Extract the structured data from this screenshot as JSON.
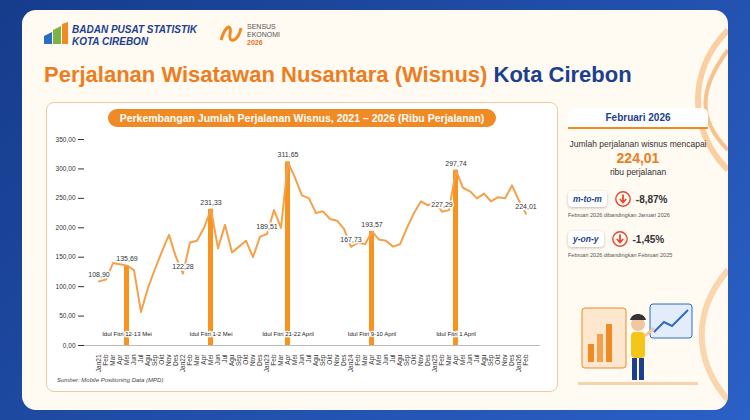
{
  "header": {
    "org": "BADAN PUSAT STATISTIK",
    "org_sub": "KOTA CIREBON",
    "census": "SENSUS",
    "census_sub": "EKONOMI",
    "census_year": "2026"
  },
  "page_title": {
    "text": "Perjalanan Wisatawan Nusantara (Wisnus)",
    "place": "Kota Cirebon"
  },
  "chart_data": {
    "type": "line",
    "title": "Perkembangan Jumlah Perjalanan Wisnus, 2021 – 2026 (Ribu Perjalanan)",
    "source": "Sumber: Mobile Positioning Data (MPD)",
    "categories": [
      "Jan21",
      "Feb",
      "Mar",
      "Apr",
      "Mei",
      "Jun",
      "Jul",
      "Agu",
      "Sep",
      "Okt",
      "Nov",
      "Des",
      "Jan22",
      "Feb",
      "Mar",
      "Apr",
      "Mei",
      "Jun",
      "Jul",
      "Agu",
      "Sep",
      "Okt",
      "Nov",
      "Des",
      "Jan23",
      "Feb",
      "Mar",
      "Apr",
      "Mei",
      "Jun",
      "Jul",
      "Agu",
      "Sep",
      "Okt",
      "Nov",
      "Des",
      "Jan24",
      "Feb",
      "Mar",
      "Apr",
      "Mei",
      "Jun",
      "Jul",
      "Agu",
      "Sep",
      "Okt",
      "Nov",
      "Des",
      "Jan25",
      "Feb",
      "Mar",
      "Apr",
      "Mei",
      "Jun",
      "Jul",
      "Agu",
      "Sep",
      "Okt",
      "Nov",
      "Des",
      "Jan26",
      "Feb"
    ],
    "series": [
      {
        "type": "line",
        "color": "#f5a04a",
        "values": [
          108.9,
          112,
          140,
          138,
          135.69,
          128,
          57,
          98,
          130,
          160,
          188,
          150,
          122.28,
          175,
          178,
          200,
          231.33,
          165,
          205,
          158,
          168,
          178,
          150,
          185,
          189.51,
          230,
          200,
          311.65,
          285,
          255,
          250,
          225,
          228,
          215,
          212,
          198,
          167.73,
          175,
          172,
          193.57,
          180,
          178,
          168,
          172,
          200,
          225,
          245,
          238,
          245,
          227.29,
          230,
          297.74,
          268,
          262,
          250,
          258,
          245,
          252,
          250,
          272,
          245.81,
          224.01
        ],
        "value_labels": [
          "108,90",
          null,
          null,
          null,
          "135,69",
          null,
          null,
          null,
          null,
          null,
          null,
          null,
          "122,28",
          null,
          null,
          null,
          "231,33",
          null,
          null,
          null,
          null,
          null,
          null,
          null,
          "189,51",
          null,
          null,
          "311,65",
          null,
          null,
          null,
          null,
          null,
          null,
          null,
          null,
          "167,73",
          null,
          null,
          "193,57",
          null,
          null,
          null,
          null,
          null,
          null,
          null,
          null,
          null,
          "227,29",
          null,
          "297,74",
          null,
          null,
          null,
          null,
          null,
          null,
          null,
          null,
          null,
          "224,01"
        ]
      },
      {
        "type": "bar",
        "color": "#f7931e",
        "values": [
          null,
          null,
          null,
          null,
          135.69,
          null,
          null,
          null,
          null,
          null,
          null,
          null,
          null,
          null,
          null,
          null,
          231.33,
          null,
          null,
          null,
          null,
          null,
          null,
          null,
          null,
          null,
          null,
          311.65,
          null,
          null,
          null,
          null,
          null,
          null,
          null,
          null,
          null,
          null,
          null,
          193.57,
          null,
          null,
          null,
          null,
          null,
          null,
          null,
          null,
          null,
          null,
          null,
          297.74,
          null,
          null,
          null,
          null,
          null,
          null,
          null,
          null,
          null,
          null
        ],
        "labels": [
          null,
          null,
          null,
          null,
          "Idul Fitri 12-13 Mei",
          null,
          null,
          null,
          null,
          null,
          null,
          null,
          null,
          null,
          null,
          null,
          "Idul Fitri 1-2 Mei",
          null,
          null,
          null,
          null,
          null,
          null,
          null,
          null,
          null,
          null,
          "Idul Fitri 21-22 April",
          null,
          null,
          null,
          null,
          null,
          null,
          null,
          null,
          null,
          null,
          null,
          "Idul Fitri 9-10 April",
          null,
          null,
          null,
          null,
          null,
          null,
          null,
          null,
          null,
          null,
          null,
          "Idul Fitri 1 April",
          null,
          null,
          null,
          null,
          null,
          null,
          null,
          null,
          null,
          null
        ]
      }
    ],
    "ylim": [
      0,
      350
    ],
    "yticks": [
      {
        "value": 0,
        "label": "0,00"
      },
      {
        "value": 50,
        "label": "50,00"
      },
      {
        "value": 100,
        "label": "100,00"
      },
      {
        "value": 150,
        "label": "150,00"
      },
      {
        "value": 200,
        "label": "200,00"
      },
      {
        "value": 250,
        "label": "250,00"
      },
      {
        "value": 300,
        "label": "300,00"
      },
      {
        "value": 350,
        "label": "350,00"
      }
    ],
    "grid": false,
    "data_labels": true
  },
  "panel": {
    "header": "Februari 2026",
    "text": "Jumlah perjalanan wisnus mencapai",
    "value": "224,01",
    "unit": "ribu perjalanan",
    "mtm": {
      "label": "m-to-m",
      "value": "-8,87%",
      "note": "Februari 2026 dibandingkan Januari 2026"
    },
    "yoy": {
      "label": "y-on-y",
      "value": "-1,45%",
      "note": "Februari 2026 dibandingkan Februari 2025"
    }
  }
}
